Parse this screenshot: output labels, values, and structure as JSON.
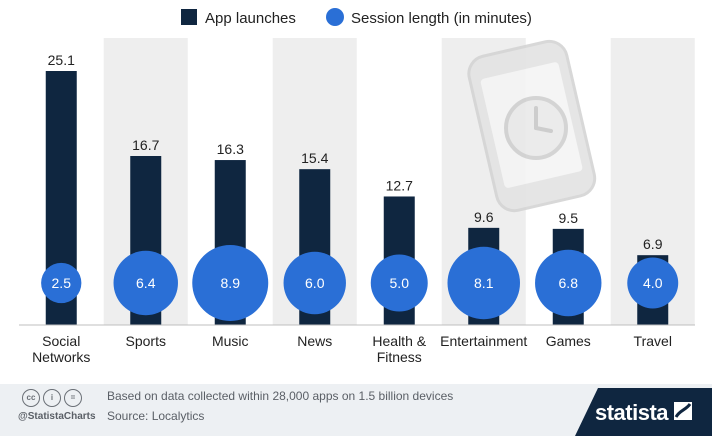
{
  "chart_data": {
    "type": "bar",
    "categories": [
      [
        "Social",
        "Networks"
      ],
      [
        "Sports"
      ],
      [
        "Music"
      ],
      [
        "News"
      ],
      [
        "Health &",
        "Fitness"
      ],
      [
        "Entertainment"
      ],
      [
        "Games"
      ],
      [
        "Travel"
      ]
    ],
    "series": [
      {
        "name": "App launches",
        "values": [
          25.1,
          16.7,
          16.3,
          15.4,
          12.7,
          9.6,
          9.5,
          6.9
        ],
        "color": "#0f2640"
      },
      {
        "name": "Session length (in minutes)",
        "values": [
          2.5,
          6.4,
          8.9,
          6.0,
          5.0,
          8.1,
          6.8,
          4.0
        ],
        "color": "#2a6fd6"
      }
    ],
    "ylim": [
      0,
      25.1
    ],
    "legend_position": "top-center",
    "shaded_columns": [
      1,
      3,
      5,
      7
    ]
  },
  "footer": {
    "note": "Based on data collected within 28,000 apps on 1.5 billion devices",
    "source": "Source: Localytics",
    "handle": "@StatistaCharts",
    "brand": "statista"
  },
  "colors": {
    "bar": "#0f2640",
    "bubble": "#2a6fd6",
    "shade": "#eeeeee",
    "footer_bg": "#edf0f3",
    "brand_bg": "#0f2640"
  }
}
